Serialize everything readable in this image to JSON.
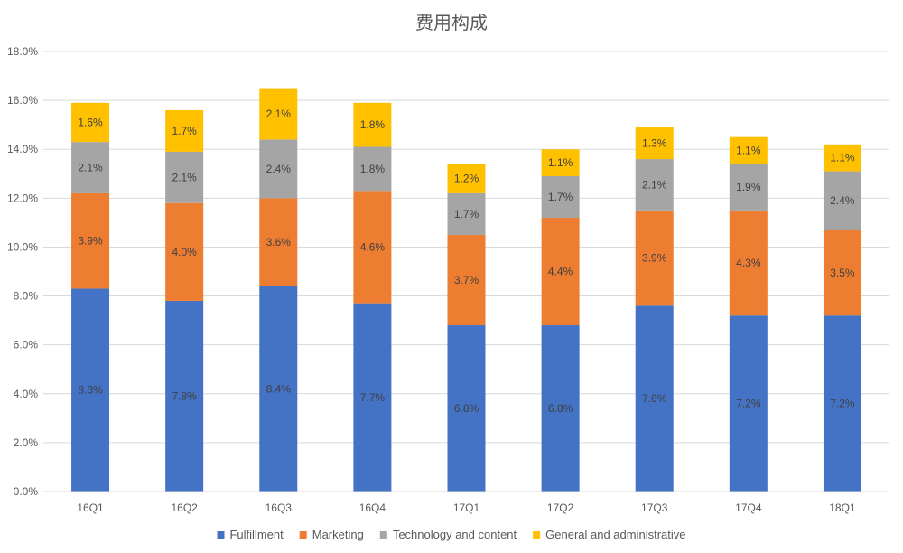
{
  "chart_data": {
    "type": "bar",
    "stacked": true,
    "title": "费用构成",
    "categories": [
      "16Q1",
      "16Q2",
      "16Q3",
      "16Q4",
      "17Q1",
      "17Q2",
      "17Q3",
      "17Q4",
      "18Q1"
    ],
    "series": [
      {
        "name": "Fulfillment",
        "color": "#4472C4",
        "values": [
          8.3,
          7.8,
          8.4,
          7.7,
          6.8,
          6.8,
          7.6,
          7.2,
          7.2
        ]
      },
      {
        "name": "Marketing",
        "color": "#ED7D31",
        "values": [
          3.9,
          4.0,
          3.6,
          4.6,
          3.7,
          4.4,
          3.9,
          4.3,
          3.5
        ]
      },
      {
        "name": "Technology and content",
        "color": "#A5A5A5",
        "values": [
          2.1,
          2.1,
          2.4,
          1.8,
          1.7,
          1.7,
          2.1,
          1.9,
          2.4
        ]
      },
      {
        "name": "General and administrative",
        "color": "#FFC000",
        "values": [
          1.6,
          1.7,
          2.1,
          1.8,
          1.2,
          1.1,
          1.3,
          1.1,
          1.1
        ]
      }
    ],
    "data_labels": [
      [
        "8.3%",
        "7.8%",
        "8.4%",
        "7.7%",
        "6.8%",
        "6.8%",
        "7.6%",
        "7.2%",
        "7.2%"
      ],
      [
        "3.9%",
        "4.0%",
        "3.6%",
        "4.6%",
        "3.7%",
        "4.4%",
        "3.9%",
        "4.3%",
        "3.5%"
      ],
      [
        "2.1%",
        "2.1%",
        "2.4%",
        "1.8%",
        "1.7%",
        "1.7%",
        "2.1%",
        "1.9%",
        "2.4%"
      ],
      [
        "1.6%",
        "1.7%",
        "2.1%",
        "1.8%",
        "1.2%",
        "1.1%",
        "1.3%",
        "1.1%",
        "1.1%"
      ]
    ],
    "ylim": [
      0,
      18
    ],
    "yticks": [
      0,
      2,
      4,
      6,
      8,
      10,
      12,
      14,
      16,
      18
    ],
    "ytick_labels": [
      "0.0%",
      "2.0%",
      "4.0%",
      "6.0%",
      "8.0%",
      "10.0%",
      "12.0%",
      "14.0%",
      "16.0%",
      "18.0%"
    ],
    "grid": true,
    "legend_position": "bottom"
  }
}
